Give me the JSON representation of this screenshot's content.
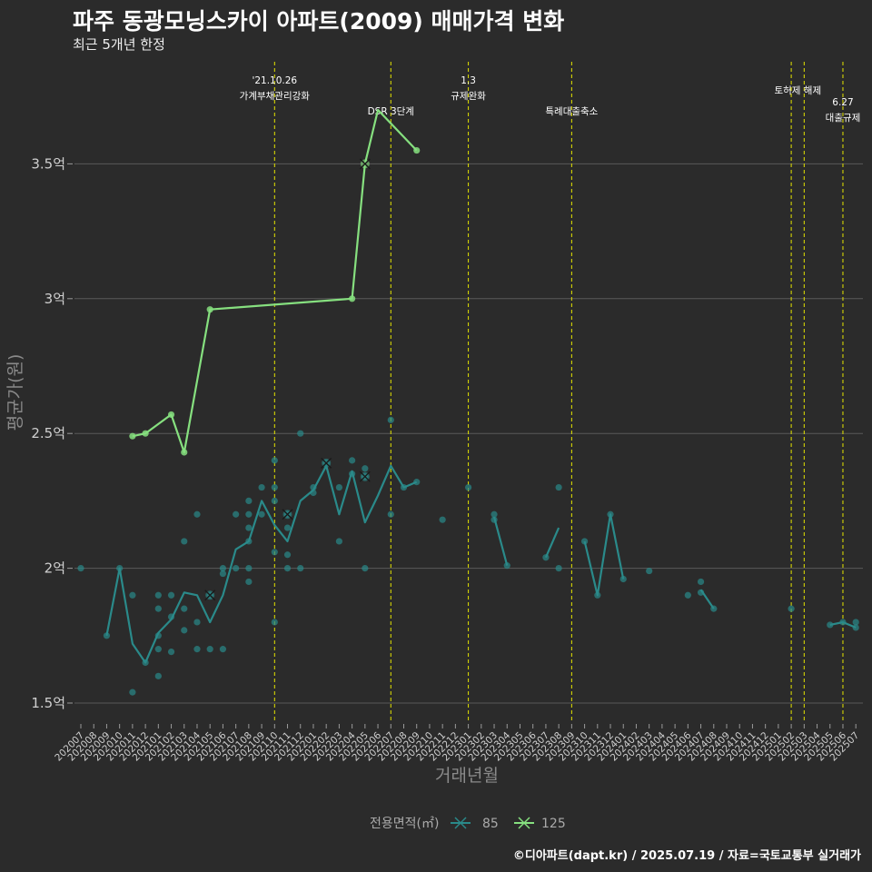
{
  "title": "파주 동광모닝스카이 아파트(2009) 매매가격 변화",
  "subtitle": "최근 5개년 한정",
  "caption": "©디아파트(dapt.kr) / 2025.07.19 / 자료=국토교통부 실거래가",
  "colors": {
    "background": "#2b2b2b",
    "grid": "#5a5a5a",
    "series85": "#2a8a8a",
    "series125": "#86e07f",
    "vline": "#e5e500"
  },
  "chart_data": {
    "type": "line",
    "title": "파주 동광모닝스카이 아파트(2009) 매매가격 변화",
    "subtitle": "최근 5개년 한정",
    "xlabel": "거래년월",
    "ylabel": "평균가(원)",
    "ylim": [
      1.45,
      3.78
    ],
    "y_ticks": [
      {
        "value": 1.5,
        "label": "1.5억"
      },
      {
        "value": 2.0,
        "label": "2억"
      },
      {
        "value": 2.5,
        "label": "2.5억"
      },
      {
        "value": 3.0,
        "label": "3억"
      },
      {
        "value": 3.5,
        "label": "3.5억"
      }
    ],
    "grid": true,
    "categories": [
      "202007",
      "202008",
      "202009",
      "202010",
      "202011",
      "202012",
      "202101",
      "202102",
      "202103",
      "202104",
      "202105",
      "202106",
      "202107",
      "202108",
      "202109",
      "202110",
      "202111",
      "202112",
      "202201",
      "202202",
      "202203",
      "202204",
      "202205",
      "202206",
      "202207",
      "202208",
      "202209",
      "202210",
      "202211",
      "202212",
      "202301",
      "202302",
      "202303",
      "202304",
      "202305",
      "202306",
      "202307",
      "202308",
      "202309",
      "202310",
      "202311",
      "202312",
      "202401",
      "202402",
      "202403",
      "202404",
      "202405",
      "202406",
      "202407",
      "202408",
      "202409",
      "202410",
      "202411",
      "202412",
      "202501",
      "202502",
      "202503",
      "202504",
      "202505",
      "202506",
      "202507"
    ],
    "legend": {
      "title": "전용면적(㎡)",
      "position": "bottom"
    },
    "series": [
      {
        "name": "85",
        "color": "#2a8a8a",
        "segments": [
          [
            [
              "202007",
              2.0
            ]
          ],
          [
            [
              "202009",
              1.75
            ],
            [
              "202010",
              2.0
            ],
            [
              "202011",
              1.72
            ],
            [
              "202012",
              1.65
            ],
            [
              "202101",
              1.76
            ],
            [
              "202102",
              1.81
            ],
            [
              "202103",
              1.91
            ],
            [
              "202104",
              1.9
            ],
            [
              "202105",
              1.8
            ],
            [
              "202106",
              1.9
            ],
            [
              "202107",
              2.07
            ],
            [
              "202108",
              2.1
            ],
            [
              "202109",
              2.25
            ],
            [
              "202110",
              2.16
            ],
            [
              "202111",
              2.1
            ],
            [
              "202112",
              2.25
            ],
            [
              "202201",
              2.29
            ],
            [
              "202202",
              2.38
            ],
            [
              "202203",
              2.2
            ],
            [
              "202204",
              2.36
            ],
            [
              "202205",
              2.17
            ],
            [
              "202206",
              2.27
            ],
            [
              "202207",
              2.38
            ],
            [
              "202208",
              2.3
            ],
            [
              "202209",
              2.32
            ]
          ],
          [
            [
              "202211",
              2.18
            ]
          ],
          [
            [
              "202301",
              2.3
            ]
          ],
          [
            [
              "202303",
              2.19
            ],
            [
              "202304",
              2.01
            ]
          ],
          [
            [
              "202307",
              2.04
            ],
            [
              "202308",
              2.15
            ]
          ],
          [
            [
              "202310",
              2.1
            ],
            [
              "202311",
              1.9
            ],
            [
              "202312",
              2.2
            ],
            [
              "202401",
              1.96
            ]
          ],
          [
            [
              "202403",
              1.99
            ]
          ],
          [
            [
              "202406",
              1.9
            ]
          ],
          [
            [
              "202407",
              1.92
            ],
            [
              "202408",
              1.85
            ]
          ],
          [
            [
              "202502",
              1.85
            ]
          ],
          [
            [
              "202505",
              1.79
            ],
            [
              "202506",
              1.8
            ],
            [
              "202507",
              1.78
            ]
          ]
        ],
        "points": [
          [
            "202007",
            2.0
          ],
          [
            "202009",
            1.75
          ],
          [
            "202010",
            2.0
          ],
          [
            "202011",
            1.9
          ],
          [
            "202011",
            1.54
          ],
          [
            "202012",
            1.65
          ],
          [
            "202101",
            1.9
          ],
          [
            "202101",
            1.85
          ],
          [
            "202101",
            1.75
          ],
          [
            "202101",
            1.7
          ],
          [
            "202101",
            1.6
          ],
          [
            "202102",
            1.9
          ],
          [
            "202102",
            1.82
          ],
          [
            "202102",
            1.69
          ],
          [
            "202103",
            2.1
          ],
          [
            "202103",
            1.85
          ],
          [
            "202103",
            1.77
          ],
          [
            "202104",
            2.2
          ],
          [
            "202104",
            1.8
          ],
          [
            "202104",
            1.7
          ],
          [
            "202105",
            1.9
          ],
          [
            "202105",
            1.7
          ],
          [
            "202106",
            2.0
          ],
          [
            "202106",
            1.98
          ],
          [
            "202106",
            1.7
          ],
          [
            "202107",
            2.2
          ],
          [
            "202107",
            2.0
          ],
          [
            "202108",
            2.25
          ],
          [
            "202108",
            2.2
          ],
          [
            "202108",
            2.15
          ],
          [
            "202108",
            2.1
          ],
          [
            "202108",
            2.0
          ],
          [
            "202108",
            1.95
          ],
          [
            "202109",
            2.3
          ],
          [
            "202109",
            2.2
          ],
          [
            "202110",
            2.4
          ],
          [
            "202110",
            2.3
          ],
          [
            "202110",
            2.25
          ],
          [
            "202110",
            2.06
          ],
          [
            "202110",
            1.8
          ],
          [
            "202111",
            2.2
          ],
          [
            "202111",
            2.15
          ],
          [
            "202111",
            2.05
          ],
          [
            "202111",
            2.0
          ],
          [
            "202112",
            2.5
          ],
          [
            "202112",
            2.0
          ],
          [
            "202201",
            2.3
          ],
          [
            "202201",
            2.28
          ],
          [
            "202202",
            2.39
          ],
          [
            "202203",
            2.3
          ],
          [
            "202203",
            2.1
          ],
          [
            "202204",
            2.4
          ],
          [
            "202204",
            2.35
          ],
          [
            "202205",
            2.37
          ],
          [
            "202205",
            2.34
          ],
          [
            "202205",
            2.0
          ],
          [
            "202207",
            2.55
          ],
          [
            "202207",
            2.2
          ],
          [
            "202208",
            2.3
          ],
          [
            "202209",
            2.32
          ],
          [
            "202211",
            2.18
          ],
          [
            "202301",
            2.3
          ],
          [
            "202303",
            2.2
          ],
          [
            "202303",
            2.18
          ],
          [
            "202304",
            2.01
          ],
          [
            "202307",
            2.04
          ],
          [
            "202308",
            2.3
          ],
          [
            "202308",
            2.0
          ],
          [
            "202310",
            2.1
          ],
          [
            "202311",
            1.9
          ],
          [
            "202312",
            2.2
          ],
          [
            "202401",
            1.96
          ],
          [
            "202403",
            1.99
          ],
          [
            "202406",
            1.9
          ],
          [
            "202407",
            1.95
          ],
          [
            "202407",
            1.91
          ],
          [
            "202408",
            1.85
          ],
          [
            "202502",
            1.85
          ],
          [
            "202505",
            1.79
          ],
          [
            "202506",
            1.8
          ],
          [
            "202507",
            1.8
          ],
          [
            "202507",
            1.78
          ]
        ],
        "x_marks": [
          [
            "202105",
            1.9
          ],
          [
            "202111",
            2.2
          ],
          [
            "202202",
            2.39
          ],
          [
            "202205",
            2.34
          ]
        ]
      },
      {
        "name": "125",
        "color": "#86e07f",
        "segments": [
          [
            [
              "202011",
              2.49
            ],
            [
              "202012",
              2.5
            ],
            [
              "202102",
              2.57
            ],
            [
              "202103",
              2.43
            ],
            [
              "202105",
              2.96
            ],
            [
              "202204",
              3.0
            ],
            [
              "202205",
              3.5
            ],
            [
              "202206",
              3.7
            ],
            [
              "202209",
              3.55
            ]
          ]
        ],
        "points": [
          [
            "202011",
            2.49
          ],
          [
            "202012",
            2.5
          ],
          [
            "202102",
            2.57
          ],
          [
            "202103",
            2.43
          ],
          [
            "202105",
            2.96
          ],
          [
            "202204",
            3.0
          ],
          [
            "202209",
            3.55
          ]
        ],
        "x_marks": [
          [
            "202205",
            3.5
          ]
        ]
      }
    ],
    "annotations": [
      {
        "x": "202110",
        "lines": [
          "'21.10.26",
          "가계부채관리강화"
        ],
        "row": 0
      },
      {
        "x": "202207",
        "lines": [
          "DSR 3단계"
        ],
        "row": 1
      },
      {
        "x": "202301",
        "lines": [
          "1.3",
          "규제완화"
        ],
        "row": 0
      },
      {
        "x": "202309",
        "lines": [
          "특례대출축소"
        ],
        "row": 1
      },
      {
        "x": "202502",
        "lines": [],
        "row": 0
      },
      {
        "x": "202503",
        "lines": [
          "토허제 해제"
        ],
        "row": 0,
        "shift": -7
      },
      {
        "x": "202506",
        "lines": [
          "6.27",
          "대출규제"
        ],
        "row": 2
      }
    ]
  }
}
